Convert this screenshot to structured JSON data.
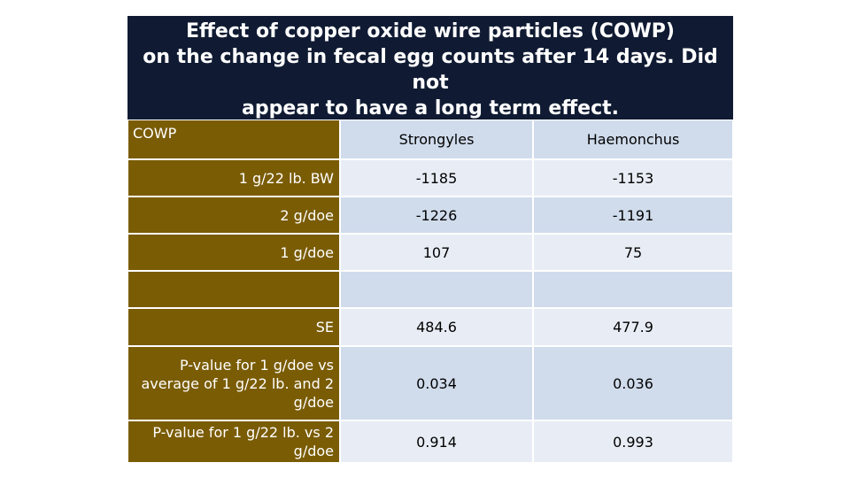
{
  "title": "Effect of copper oxide wire particles (COWP)\non the change in fecal egg counts after 14 days. Did not\nappear to have a long term effect.",
  "table": {
    "corner_label": "COWP",
    "columns": [
      "Strongyles",
      "Haemonchus"
    ],
    "rows": [
      {
        "label": "1 g/22 lb. BW",
        "values": [
          "-1185",
          "-1153"
        ]
      },
      {
        "label": "2 g/doe",
        "values": [
          "-1226",
          "-1191"
        ]
      },
      {
        "label": "1 g/doe",
        "values": [
          "107",
          "75"
        ]
      },
      {
        "label": "",
        "values": [
          "",
          ""
        ]
      },
      {
        "label": "SE",
        "values": [
          "484.6",
          "477.9"
        ]
      },
      {
        "label": "P-value for 1 g/doe vs average of 1 g/22 lb. and 2 g/doe",
        "values": [
          "0.034",
          "0.036"
        ]
      },
      {
        "label": "P-value for 1 g/22 lb. vs 2 g/doe",
        "values": [
          "0.914",
          "0.993"
        ]
      }
    ]
  },
  "colors": {
    "title_background": "#101b33",
    "label_background": "#7a5c05",
    "cell_dark": "#d0dcec",
    "cell_light": "#e8edf5"
  }
}
